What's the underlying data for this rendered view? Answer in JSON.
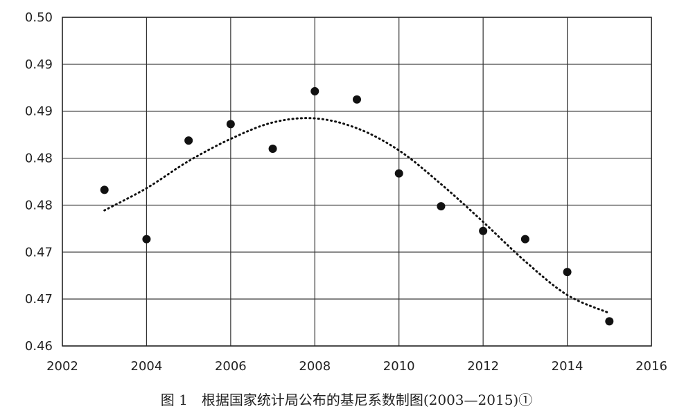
{
  "chart_data": {
    "type": "scatter",
    "title": "",
    "xlabel": "",
    "ylabel": "",
    "xlim": [
      2002,
      2016
    ],
    "ylim": [
      0.46,
      0.5
    ],
    "x_ticks": [
      "2002",
      "2004",
      "2006",
      "2008",
      "2010",
      "2012",
      "2014",
      "2016"
    ],
    "y_ticks": [
      "0.46",
      "0.47",
      "0.47",
      "0.48",
      "0.48",
      "0.49",
      "0.49",
      "0.50"
    ],
    "grid": true,
    "legend": "none",
    "series": [
      {
        "type": "scatter",
        "x": [
          2003,
          2004,
          2005,
          2006,
          2007,
          2008,
          2009,
          2010,
          2011,
          2012,
          2013,
          2014,
          2015
        ],
        "y": [
          0.479,
          0.473,
          0.485,
          0.487,
          0.484,
          0.491,
          0.49,
          0.481,
          0.477,
          0.474,
          0.473,
          0.469,
          0.463
        ],
        "color": "#111111"
      },
      {
        "type": "line",
        "style": "dotted",
        "x": [
          2003,
          2004,
          2005,
          2006,
          2007,
          2008,
          2009,
          2010,
          2011,
          2012,
          2013,
          2014,
          2015
        ],
        "y": [
          0.4765,
          0.4792,
          0.4825,
          0.4852,
          0.4872,
          0.4877,
          0.4865,
          0.4838,
          0.4797,
          0.4751,
          0.4703,
          0.4662,
          0.464
        ],
        "color": "#111111"
      }
    ]
  },
  "caption": "图 1　根据国家统计局公布的基尼系数制图(2003—2015)①"
}
